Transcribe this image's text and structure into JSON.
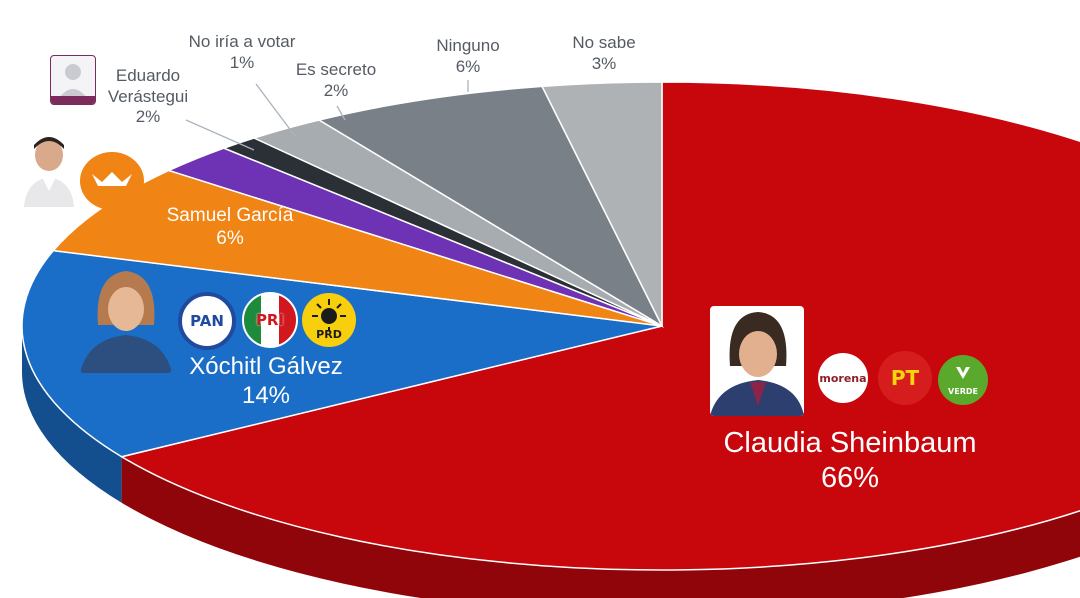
{
  "chart_data": {
    "type": "pie",
    "title": "",
    "slices": [
      {
        "label": "Claudia Sheinbaum",
        "value": 66,
        "pct_label": "66%",
        "color": "#c8070d"
      },
      {
        "label": "Xóchitl Gálvez",
        "value": 14,
        "pct_label": "14%",
        "color": "#1a6ec7"
      },
      {
        "label": "Samuel García",
        "value": 6,
        "pct_label": "6%",
        "color": "#f08415"
      },
      {
        "label": "Eduardo Verástegui",
        "value": 2,
        "pct_label": "2%",
        "color": "#6e32b4"
      },
      {
        "label": "No iría a votar",
        "value": 1,
        "pct_label": "1%",
        "color": "#2b3036"
      },
      {
        "label": "Es secreto",
        "value": 2,
        "pct_label": "2%",
        "color": "#a7acb0"
      },
      {
        "label": "Ninguno",
        "value": 6,
        "pct_label": "6%",
        "color": "#7a8088"
      },
      {
        "label": "No sabe",
        "value": 3,
        "pct_label": "3%",
        "color": "#aeb2b5"
      }
    ]
  },
  "labels": {
    "claudia": {
      "name": "Claudia Sheinbaum",
      "pct": "66%"
    },
    "xochitl": {
      "name": "Xóchitl Gálvez",
      "pct": "14%"
    },
    "samuel": {
      "name": "Samuel García",
      "pct": "6%"
    },
    "eduardo": {
      "line1": "Eduardo",
      "line2": "Verástegui",
      "pct": "2%"
    },
    "no_iria": {
      "name": "No iría a votar",
      "pct": "1%"
    },
    "secreto": {
      "name": "Es secreto",
      "pct": "2%"
    },
    "ninguno": {
      "name": "Ninguno",
      "pct": "6%"
    },
    "no_sabe": {
      "name": "No sabe",
      "pct": "3%"
    }
  },
  "logos": {
    "pan": "PAN",
    "pri": "PRI",
    "prd": "PRD",
    "morena": "morena",
    "pt": "PT",
    "verde": "VERDE",
    "mc": "MOVIMIENTO CIUDADANO",
    "candidato": "CANDIDATO"
  }
}
